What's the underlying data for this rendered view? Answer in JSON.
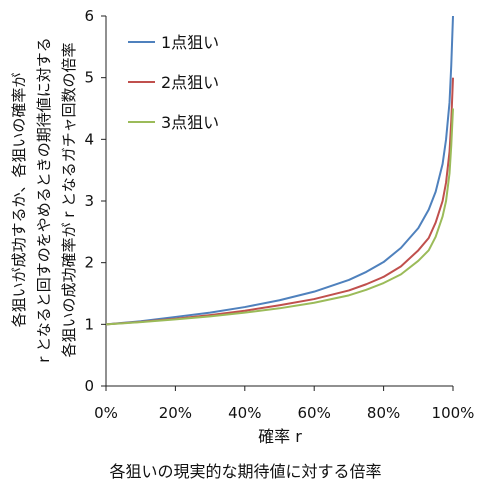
{
  "chart_data": {
    "type": "line",
    "caption": "各狙いの現実的な期待値に対する倍率",
    "xlabel": "確率 r",
    "ylabel_lines": [
      "各狙いが成功するか、各狙いの確率が",
      "r となると回すのをやめるときの期待値に対する",
      "各狙いの成功確率が r となるガチャ回数の倍率"
    ],
    "xlim": [
      0,
      1
    ],
    "ylim": [
      0,
      6
    ],
    "x_ticks": [
      "0%",
      "20%",
      "40%",
      "60%",
      "80%",
      "100%"
    ],
    "y_ticks": [
      "0",
      "1",
      "2",
      "3",
      "4",
      "5",
      "6"
    ],
    "grid": false,
    "legend_position": "top-left",
    "x": [
      0,
      0.1,
      0.2,
      0.3,
      0.4,
      0.5,
      0.6,
      0.7,
      0.75,
      0.8,
      0.85,
      0.9,
      0.93,
      0.95,
      0.97,
      0.98,
      0.99,
      0.995,
      1.0
    ],
    "series": [
      {
        "name": "1点狙い",
        "color": "#4f81bd",
        "values": [
          1.0,
          1.05,
          1.12,
          1.19,
          1.28,
          1.39,
          1.53,
          1.72,
          1.85,
          2.01,
          2.24,
          2.56,
          2.86,
          3.15,
          3.6,
          4.0,
          4.6,
          5.2,
          6.0
        ]
      },
      {
        "name": "2点狙い",
        "color": "#c0504d",
        "values": [
          1.0,
          1.04,
          1.09,
          1.15,
          1.22,
          1.31,
          1.41,
          1.55,
          1.65,
          1.77,
          1.94,
          2.2,
          2.4,
          2.65,
          3.0,
          3.3,
          3.8,
          4.3,
          5.0
        ]
      },
      {
        "name": "3点狙い",
        "color": "#9bbb59",
        "values": [
          1.0,
          1.035,
          1.08,
          1.13,
          1.19,
          1.26,
          1.35,
          1.47,
          1.56,
          1.67,
          1.81,
          2.03,
          2.2,
          2.42,
          2.75,
          3.0,
          3.45,
          3.9,
          4.5
        ]
      }
    ]
  }
}
